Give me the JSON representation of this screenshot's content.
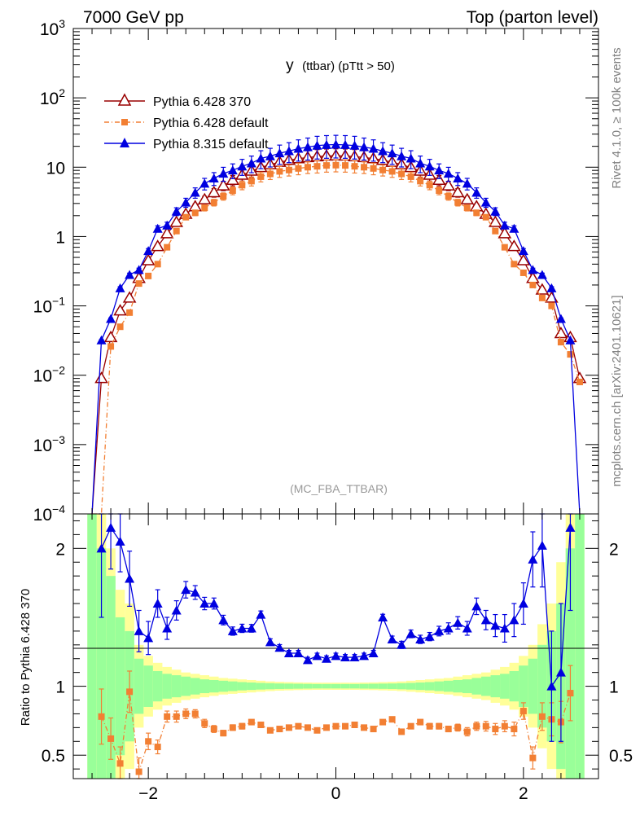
{
  "header": {
    "left": "7000 GeV pp",
    "right": "Top (parton level)"
  },
  "side_labels": {
    "rivet": "Rivet 4.1.0, ≥ 100k events",
    "mcplots": "mcplots.cern.ch [arXiv:2401.10621]"
  },
  "colors": {
    "p6_370": "#990000",
    "p6_default": "#f27f33",
    "p8_default": "#0000e0",
    "band_green": "#99ff99",
    "band_yellow": "#ffff99",
    "axis": "#000000",
    "analysis_label": "#999999"
  },
  "chart_data": [
    {
      "type": "line",
      "panel": "main",
      "title": "y (ttbar) (pTtt > 50)",
      "title_main": "y",
      "title_sub": "(ttbar) (pTtt > 50)",
      "analysis_label": "(MC_FBA_TTBAR)",
      "xlabel": "",
      "ylabel": "",
      "yscale": "log",
      "xlim": [
        -2.8,
        2.8
      ],
      "ylim": [
        0.0001,
        1000
      ],
      "x_ticks": [
        -2,
        0,
        2
      ],
      "y_ticks": [
        {
          "value": 0.0001,
          "base": "10",
          "exp": "−4"
        },
        {
          "value": 0.001,
          "base": "10",
          "exp": "−3"
        },
        {
          "value": 0.01,
          "base": "10",
          "exp": "−2"
        },
        {
          "value": 0.1,
          "base": "10",
          "exp": "−1"
        },
        {
          "value": 1,
          "base": "1",
          "exp": ""
        },
        {
          "value": 10,
          "base": "10",
          "exp": ""
        },
        {
          "value": 100,
          "base": "10",
          "exp": "2"
        },
        {
          "value": 1000,
          "base": "10",
          "exp": "3"
        }
      ],
      "x": [
        -2.6,
        -2.5,
        -2.4,
        -2.3,
        -2.2,
        -2.1,
        -2.0,
        -1.9,
        -1.8,
        -1.7,
        -1.6,
        -1.5,
        -1.4,
        -1.3,
        -1.2,
        -1.1,
        -1.0,
        -0.9,
        -0.8,
        -0.7,
        -0.6,
        -0.5,
        -0.4,
        -0.3,
        -0.2,
        -0.1,
        0.0,
        0.1,
        0.2,
        0.3,
        0.4,
        0.5,
        0.6,
        0.7,
        0.8,
        0.9,
        1.0,
        1.1,
        1.2,
        1.3,
        1.4,
        1.5,
        1.6,
        1.7,
        1.8,
        1.9,
        2.0,
        2.1,
        2.2,
        2.3,
        2.4,
        2.5,
        2.6
      ],
      "legend": [
        {
          "label": "Pythia 6.428 370",
          "series": "p6_370"
        },
        {
          "label": "Pythia 6.428 default",
          "series": "p6_default"
        },
        {
          "label": "Pythia 8.315 default",
          "series": "p8_default"
        }
      ],
      "series": [
        {
          "name": "Pythia 6.428 370",
          "key": "p6_370",
          "marker": "open-triangle",
          "values": [
            0.0001,
            0.009,
            0.035,
            0.085,
            0.13,
            0.25,
            0.45,
            0.72,
            1.1,
            1.6,
            2.1,
            2.7,
            3.4,
            4.3,
            5.4,
            6.5,
            7.7,
            8.8,
            9.9,
            10.9,
            11.8,
            12.6,
            13.3,
            13.8,
            14.2,
            14.5,
            14.6,
            14.5,
            14.2,
            13.8,
            13.3,
            12.6,
            11.8,
            10.9,
            9.9,
            8.8,
            7.7,
            6.5,
            5.4,
            4.3,
            3.4,
            2.7,
            2.1,
            1.6,
            1.1,
            0.72,
            0.45,
            0.25,
            0.17,
            0.13,
            0.04,
            0.035,
            0.009
          ],
          "errors": [
            0,
            0.008,
            0.015,
            0.02,
            0.02,
            0.03,
            0.04,
            0.05,
            0.06,
            0.08,
            0.09,
            0.1,
            0.12,
            0.14,
            0.15,
            0.17,
            0.18,
            0.2,
            0.21,
            0.22,
            0.23,
            0.24,
            0.25,
            0.25,
            0.26,
            0.26,
            0.26,
            0.26,
            0.26,
            0.25,
            0.25,
            0.24,
            0.23,
            0.22,
            0.21,
            0.2,
            0.18,
            0.17,
            0.15,
            0.14,
            0.12,
            0.1,
            0.09,
            0.08,
            0.06,
            0.05,
            0.04,
            0.03,
            0.03,
            0.02,
            0.015,
            0.015,
            0.008
          ]
        },
        {
          "name": "Pythia 6.428 default",
          "key": "p6_default",
          "marker": "square",
          "values": [
            0.0001,
            0.0001,
            0.026,
            0.05,
            0.08,
            0.21,
            0.27,
            0.4,
            0.7,
            1.2,
            1.9,
            2.2,
            2.6,
            3.1,
            3.8,
            4.6,
            5.5,
            6.3,
            7.3,
            8.0,
            8.7,
            9.1,
            9.6,
            10.0,
            10.3,
            10.6,
            10.7,
            10.6,
            10.3,
            10.0,
            9.6,
            9.1,
            8.7,
            8.0,
            7.3,
            6.3,
            5.5,
            4.6,
            3.8,
            3.1,
            2.6,
            2.2,
            1.9,
            1.2,
            0.7,
            0.4,
            0.3,
            0.2,
            0.13,
            0.1,
            0.03,
            0.02,
            0.008
          ],
          "errors": [
            0,
            0,
            0.012,
            0.018,
            0.02,
            0.03,
            0.04,
            0.05,
            0.06,
            0.07,
            0.08,
            0.09,
            0.1,
            0.11,
            0.12,
            0.13,
            0.14,
            0.15,
            0.16,
            0.17,
            0.18,
            0.18,
            0.19,
            0.19,
            0.2,
            0.2,
            0.2,
            0.2,
            0.2,
            0.19,
            0.19,
            0.18,
            0.18,
            0.17,
            0.16,
            0.15,
            0.14,
            0.13,
            0.12,
            0.11,
            0.1,
            0.09,
            0.08,
            0.07,
            0.06,
            0.05,
            0.04,
            0.04,
            0.03,
            0.025,
            0.012,
            0.01,
            0.005
          ]
        },
        {
          "name": "Pythia 8.315 default",
          "key": "p8_default",
          "marker": "filled-triangle",
          "values": [
            0.0001,
            0.032,
            0.065,
            0.18,
            0.28,
            0.33,
            0.62,
            1.3,
            1.45,
            2.3,
            3.1,
            4.3,
            5.8,
            6.9,
            8.1,
            9.0,
            10.3,
            11.4,
            13.4,
            14.4,
            15.9,
            17.1,
            18.5,
            19.5,
            20.5,
            21.0,
            21.2,
            21.0,
            20.5,
            19.5,
            18.5,
            17.1,
            15.9,
            14.4,
            13.4,
            11.4,
            10.3,
            9.0,
            8.1,
            6.9,
            5.8,
            4.3,
            3.1,
            2.3,
            1.45,
            1.3,
            0.62,
            0.33,
            0.28,
            0.18,
            0.065,
            0.032,
            0.0001
          ],
          "errors": [
            0,
            0.02,
            0.03,
            0.05,
            0.06,
            0.06,
            0.08,
            0.1,
            0.11,
            0.13,
            0.15,
            0.17,
            0.19,
            0.21,
            0.23,
            0.24,
            0.26,
            0.27,
            0.29,
            0.3,
            0.31,
            0.32,
            0.34,
            0.35,
            0.36,
            0.36,
            0.36,
            0.36,
            0.36,
            0.35,
            0.34,
            0.32,
            0.31,
            0.3,
            0.29,
            0.27,
            0.26,
            0.24,
            0.23,
            0.21,
            0.19,
            0.17,
            0.15,
            0.13,
            0.11,
            0.1,
            0.08,
            0.06,
            0.06,
            0.05,
            0.03,
            0.02,
            0
          ]
        }
      ]
    },
    {
      "type": "line",
      "panel": "ratio",
      "ylabel": "Ratio to Pythia 6.428 370",
      "ylim": [
        0.33,
        2.25
      ],
      "reference_line": 1,
      "y_ticks": [
        {
          "value": 0.5,
          "label": "0.5"
        },
        {
          "value": 1,
          "label": "1"
        },
        {
          "value": 2,
          "label": "2"
        }
      ],
      "x_ticks": [
        {
          "value": -2,
          "label": "−2"
        },
        {
          "value": 0,
          "label": "0"
        },
        {
          "value": 2,
          "label": "2"
        }
      ],
      "xlim": [
        -2.8,
        2.8
      ],
      "band_half_width_green": [
        1.5,
        1.0,
        0.8,
        0.5,
        0.4,
        0.2,
        0.15,
        0.11,
        0.09,
        0.08,
        0.07,
        0.06,
        0.05,
        0.045,
        0.04,
        0.035,
        0.03,
        0.027,
        0.024,
        0.022,
        0.02,
        0.019,
        0.018,
        0.017,
        0.016,
        0.016,
        0.016,
        0.016,
        0.016,
        0.017,
        0.018,
        0.019,
        0.02,
        0.022,
        0.024,
        0.027,
        0.03,
        0.035,
        0.04,
        0.045,
        0.05,
        0.06,
        0.07,
        0.08,
        0.09,
        0.11,
        0.15,
        0.2,
        0.3,
        0.4,
        0.6,
        1.0,
        1.5
      ],
      "band_half_width_yellow": [
        1.8,
        1.3,
        1.0,
        0.7,
        0.6,
        0.3,
        0.22,
        0.17,
        0.14,
        0.12,
        0.1,
        0.09,
        0.08,
        0.07,
        0.06,
        0.055,
        0.05,
        0.045,
        0.04,
        0.035,
        0.032,
        0.03,
        0.028,
        0.027,
        0.026,
        0.026,
        0.026,
        0.026,
        0.026,
        0.027,
        0.028,
        0.03,
        0.032,
        0.035,
        0.04,
        0.045,
        0.05,
        0.055,
        0.06,
        0.07,
        0.08,
        0.09,
        0.1,
        0.12,
        0.14,
        0.17,
        0.22,
        0.3,
        0.45,
        0.6,
        0.9,
        1.4,
        1.8
      ],
      "series": [
        {
          "name": "Pythia 6.428 default",
          "key": "p6_default",
          "marker": "square",
          "values": [
            null,
            0.78,
            0.62,
            0.44,
            0.96,
            0.38,
            0.6,
            0.56,
            0.78,
            0.78,
            0.8,
            0.8,
            0.73,
            0.69,
            0.66,
            0.7,
            0.71,
            0.74,
            0.72,
            0.68,
            0.69,
            0.7,
            0.71,
            0.7,
            0.68,
            0.7,
            0.71,
            0.71,
            0.72,
            0.7,
            0.69,
            0.74,
            0.76,
            0.67,
            0.71,
            0.74,
            0.71,
            0.71,
            0.69,
            0.7,
            0.67,
            0.71,
            0.71,
            0.69,
            0.71,
            0.69,
            0.82,
            0.48,
            0.78,
            0.76,
            0.74,
            0.95,
            null
          ],
          "errors": [
            0,
            0.2,
            0.15,
            0.12,
            0.15,
            0.1,
            0.06,
            0.05,
            0.04,
            0.04,
            0.035,
            0.03,
            0.03,
            0.025,
            0.02,
            0.02,
            0.02,
            0.018,
            0.018,
            0.016,
            0.015,
            0.015,
            0.015,
            0.015,
            0.015,
            0.015,
            0.015,
            0.015,
            0.015,
            0.015,
            0.015,
            0.015,
            0.015,
            0.016,
            0.018,
            0.018,
            0.02,
            0.02,
            0.02,
            0.025,
            0.03,
            0.03,
            0.035,
            0.04,
            0.04,
            0.05,
            0.06,
            0.08,
            0.1,
            0.12,
            0.15,
            0.2,
            0
          ]
        },
        {
          "name": "Pythia 8.315 default",
          "key": "p8_default",
          "marker": "filled-triangle",
          "values": [
            null,
            2.0,
            2.15,
            2.05,
            1.78,
            1.4,
            1.35,
            1.6,
            1.42,
            1.55,
            1.7,
            1.68,
            1.6,
            1.6,
            1.48,
            1.4,
            1.42,
            1.42,
            1.52,
            1.32,
            1.28,
            1.24,
            1.24,
            1.19,
            1.22,
            1.2,
            1.22,
            1.21,
            1.21,
            1.22,
            1.24,
            1.5,
            1.34,
            1.3,
            1.38,
            1.34,
            1.36,
            1.4,
            1.42,
            1.46,
            1.42,
            1.58,
            1.48,
            1.44,
            1.42,
            1.48,
            1.6,
            1.92,
            2.02,
            1.0,
            1.1,
            2.15,
            null
          ],
          "errors": [
            0,
            0.5,
            0.3,
            0.22,
            0.2,
            0.15,
            0.12,
            0.1,
            0.08,
            0.07,
            0.06,
            0.05,
            0.045,
            0.04,
            0.035,
            0.03,
            0.03,
            0.028,
            0.026,
            0.024,
            0.022,
            0.02,
            0.02,
            0.02,
            0.02,
            0.02,
            0.02,
            0.02,
            0.02,
            0.02,
            0.02,
            0.022,
            0.024,
            0.026,
            0.028,
            0.03,
            0.03,
            0.035,
            0.04,
            0.045,
            0.05,
            0.06,
            0.07,
            0.08,
            0.1,
            0.12,
            0.15,
            0.2,
            0.3,
            0.4,
            0.5,
            0.6,
            0
          ]
        }
      ]
    }
  ]
}
